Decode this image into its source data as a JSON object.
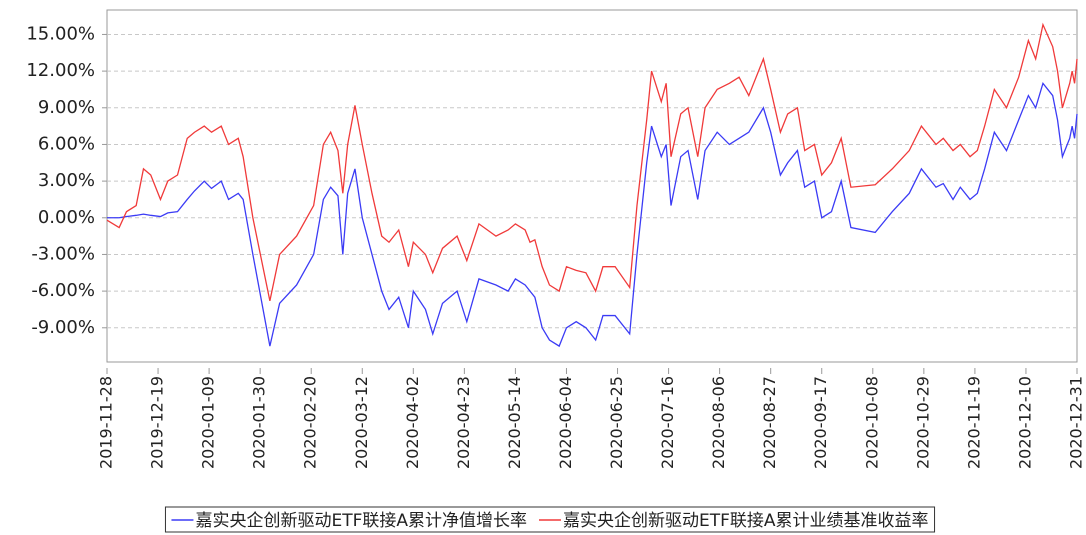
{
  "chart_data": {
    "type": "line",
    "x": [
      "2019-11-28",
      "2019-12-03",
      "2019-12-06",
      "2019-12-10",
      "2019-12-13",
      "2019-12-16",
      "2019-12-20",
      "2019-12-23",
      "2019-12-27",
      "2019-12-31",
      "2020-01-03",
      "2020-01-07",
      "2020-01-10",
      "2020-01-14",
      "2020-01-17",
      "2020-01-21",
      "2020-01-23",
      "2020-01-27",
      "2020-02-03",
      "2020-02-07",
      "2020-02-14",
      "2020-02-21",
      "2020-02-25",
      "2020-02-28",
      "2020-03-02",
      "2020-03-04",
      "2020-03-06",
      "2020-03-09",
      "2020-03-12",
      "2020-03-16",
      "2020-03-20",
      "2020-03-23",
      "2020-03-27",
      "2020-03-31",
      "2020-04-02",
      "2020-04-07",
      "2020-04-10",
      "2020-04-14",
      "2020-04-20",
      "2020-04-24",
      "2020-04-29",
      "2020-05-06",
      "2020-05-11",
      "2020-05-14",
      "2020-05-18",
      "2020-05-20",
      "2020-05-22",
      "2020-05-25",
      "2020-05-28",
      "2020-06-01",
      "2020-06-04",
      "2020-06-08",
      "2020-06-12",
      "2020-06-16",
      "2020-06-19",
      "2020-06-24",
      "2020-06-30",
      "2020-07-03",
      "2020-07-07",
      "2020-07-09",
      "2020-07-13",
      "2020-07-15",
      "2020-07-17",
      "2020-07-21",
      "2020-07-24",
      "2020-07-28",
      "2020-07-31",
      "2020-08-05",
      "2020-08-10",
      "2020-08-14",
      "2020-08-18",
      "2020-08-24",
      "2020-08-27",
      "2020-08-31",
      "2020-09-03",
      "2020-09-07",
      "2020-09-10",
      "2020-09-14",
      "2020-09-17",
      "2020-09-21",
      "2020-09-25",
      "2020-09-29",
      "2020-10-09",
      "2020-10-16",
      "2020-10-23",
      "2020-10-28",
      "2020-11-03",
      "2020-11-06",
      "2020-11-10",
      "2020-11-13",
      "2020-11-17",
      "2020-11-20",
      "2020-11-23",
      "2020-11-27",
      "2020-12-02",
      "2020-12-07",
      "2020-12-11",
      "2020-12-14",
      "2020-12-17",
      "2020-12-21",
      "2020-12-23",
      "2020-12-25",
      "2020-12-28",
      "2020-12-29",
      "2020-12-30",
      "2020-12-31"
    ],
    "series": [
      {
        "name": "嘉实央企创新驱动ETF联接A累计净值增长率",
        "color": "#3b3bf5",
        "values": [
          0,
          0,
          0.1,
          0.2,
          0.3,
          0.2,
          0.1,
          0.4,
          0.5,
          1.5,
          2.2,
          3,
          2.4,
          3,
          1.5,
          2,
          1.5,
          -3,
          -10.5,
          -7,
          -5.5,
          -3,
          1.5,
          2.5,
          1.8,
          -3,
          2,
          4,
          0,
          -3,
          -6,
          -7.5,
          -6.5,
          -9,
          -6,
          -7.5,
          -9.5,
          -7,
          -6,
          -8.5,
          -5,
          -5.5,
          -6,
          -5,
          -5.5,
          -6,
          -6.5,
          -9,
          -10,
          -10.5,
          -9,
          -8.5,
          -9,
          -10,
          -8,
          -8,
          -9.5,
          -3,
          4.5,
          7.5,
          5,
          6,
          1,
          5,
          5.5,
          1.5,
          5.5,
          7,
          6,
          6.5,
          7,
          9,
          7,
          3.5,
          4.5,
          5.5,
          2.5,
          3,
          0,
          0.5,
          3,
          -0.8,
          -1.2,
          0.5,
          2,
          4,
          2.5,
          2.8,
          1.5,
          2.5,
          1.5,
          2,
          4,
          7,
          5.5,
          8,
          10,
          9,
          11,
          10,
          8,
          5,
          6.5,
          7.5,
          6.5,
          8.5
        ]
      },
      {
        "name": "嘉实央企创新驱动ETF联接A累计业绩基准收益率",
        "color": "#f03a3a",
        "values": [
          -0.2,
          -0.8,
          0.5,
          1,
          4,
          3.5,
          1.5,
          3,
          3.5,
          6.5,
          7,
          7.5,
          7,
          7.5,
          6,
          6.5,
          5,
          0,
          -6.8,
          -3,
          -1.5,
          1,
          6,
          7,
          5.5,
          2,
          6,
          9.2,
          6,
          2,
          -1.5,
          -2,
          -1,
          -4,
          -2,
          -3,
          -4.5,
          -2.5,
          -1.5,
          -3.5,
          -0.5,
          -1.5,
          -1,
          -0.5,
          -1,
          -2,
          -1.8,
          -4,
          -5.5,
          -6,
          -4,
          -4.3,
          -4.5,
          -6,
          -4,
          -4,
          -5.7,
          1,
          8,
          12,
          9.5,
          11,
          5,
          8.5,
          9,
          5,
          9,
          10.5,
          11,
          11.5,
          10,
          13,
          10.5,
          7,
          8.5,
          9,
          5.5,
          6,
          3.5,
          4.5,
          6.5,
          2.5,
          2.7,
          4,
          5.5,
          7.5,
          6,
          6.5,
          5.5,
          6,
          5,
          5.5,
          7.5,
          10.5,
          9,
          11.5,
          14.5,
          13,
          15.8,
          14,
          12,
          9,
          11,
          12,
          11,
          13
        ]
      }
    ],
    "xlim": [
      "2019-11-28",
      "2020-12-31"
    ],
    "xticks": [
      "2019-11-28",
      "2019-12-19",
      "2020-01-09",
      "2020-01-30",
      "2020-02-20",
      "2020-03-12",
      "2020-04-02",
      "2020-04-23",
      "2020-05-14",
      "2020-06-04",
      "2020-06-25",
      "2020-07-16",
      "2020-08-06",
      "2020-08-27",
      "2020-09-17",
      "2020-10-08",
      "2020-10-29",
      "2020-11-19",
      "2020-12-10",
      "2020-12-31"
    ],
    "ylim": [
      -11.8,
      17
    ],
    "yticks": [
      {
        "value": 15,
        "label": "15.00%"
      },
      {
        "value": 12,
        "label": "12.00%"
      },
      {
        "value": 9,
        "label": "9.00%"
      },
      {
        "value": 6,
        "label": "6.00%"
      },
      {
        "value": 3,
        "label": "3.00%"
      },
      {
        "value": 0,
        "label": "0.00%"
      },
      {
        "value": -3,
        "label": "-3.00%"
      },
      {
        "value": -6,
        "label": "-6.00%"
      },
      {
        "value": -9,
        "label": "-9.00%"
      }
    ],
    "grid": true,
    "legend": "bottom"
  }
}
